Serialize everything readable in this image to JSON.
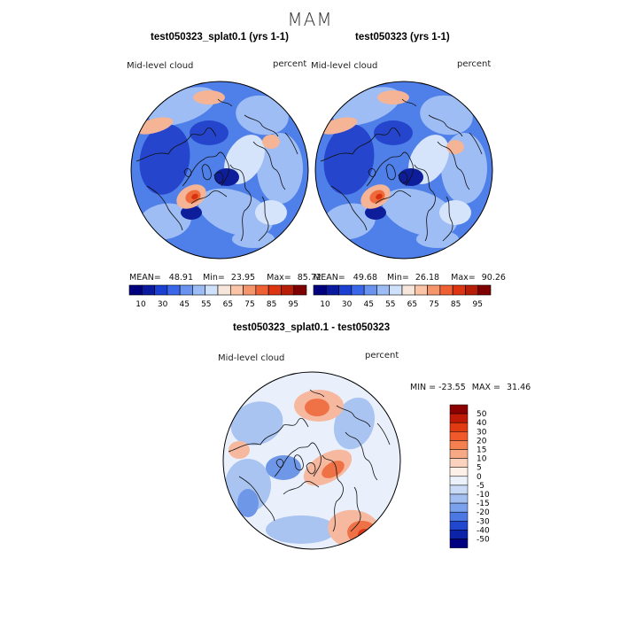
{
  "season": "MAM",
  "panels": [
    {
      "title": "test050323_splat0.1 (yrs 1-1)",
      "variable": "Mid-level cloud",
      "units": "percent",
      "stats": {
        "mean_label": "MEAN=",
        "mean": "48.91",
        "min_label": "Min=",
        "min": "23.95",
        "max_label": "Max=",
        "max": "85.72"
      }
    },
    {
      "title": "test050323 (yrs 1-1)",
      "variable": "Mid-level cloud",
      "units": "percent",
      "stats": {
        "mean_label": "MEAN=",
        "mean": "49.68",
        "min_label": "Min=",
        "min": "26.18",
        "max_label": "Max=",
        "max": "90.26"
      }
    }
  ],
  "abs_colorbar": {
    "colors": [
      "#00007f",
      "#0a1a9f",
      "#1a3fd1",
      "#3a66ea",
      "#6a93f0",
      "#9cbcf5",
      "#cfe0fa",
      "#f7e6dc",
      "#f9c4a8",
      "#f5956c",
      "#ef6035",
      "#dd3412",
      "#b81d08",
      "#7f0000"
    ],
    "tick_labels": [
      "10",
      "30",
      "45",
      "55",
      "65",
      "75",
      "85",
      "95"
    ]
  },
  "diff_panel": {
    "title": "test050323_splat0.1 - test050323",
    "variable": "Mid-level cloud",
    "units": "percent",
    "minmax": {
      "min_label": "MIN =",
      "min": "-23.55",
      "max_label": "MAX =",
      "max": "31.46"
    }
  },
  "diff_colorbar": {
    "colors": [
      "#8b0000",
      "#c01a06",
      "#e23a10",
      "#f2592a",
      "#f5804f",
      "#f7a985",
      "#fad2bd",
      "#fcf0e8",
      "#eaf1fb",
      "#c9daf6",
      "#a3bff2",
      "#7aa1ed",
      "#4b78e3",
      "#2147cf",
      "#0c22a8",
      "#000080"
    ],
    "tick_labels": [
      "50",
      "40",
      "30",
      "20",
      "15",
      "10",
      "5",
      "0",
      "-5",
      "-10",
      "-15",
      "-20",
      "-30",
      "-40",
      "-50"
    ]
  },
  "map_palette": {
    "abs_base": "#4f7fe8",
    "abs_light": "#9dbdf4",
    "abs_pale": "#d5e4fb",
    "abs_dark": "#2546cc",
    "abs_deep": "#0e1e9a",
    "abs_warm1": "#f5b496",
    "abs_warm2": "#ef6a3a",
    "abs_hot": "#d8310f",
    "diff_base": "#e9f0fb",
    "diff_lblue": "#a9c4f1",
    "diff_blue": "#6f97e8",
    "diff_lred": "#f6b9a0",
    "diff_red": "#ef7247",
    "diff_dred": "#d9391a",
    "coast": "#111111"
  }
}
